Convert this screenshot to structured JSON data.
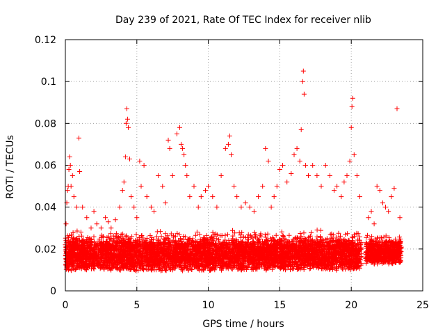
{
  "chart_data": {
    "type": "scatter",
    "title": "Day 239 of 2021, Rate Of TEC Index for receiver nlib",
    "xlabel": "GPS time / hours",
    "ylabel": "ROTI / TECUs",
    "xlim": [
      0,
      25
    ],
    "ylim": [
      0,
      0.12
    ],
    "xticks": [
      0,
      5,
      10,
      15,
      20,
      25
    ],
    "xtick_labels": [
      "0",
      "5",
      "10",
      "15",
      "20",
      "25"
    ],
    "yticks": [
      0,
      0.02,
      0.04,
      0.06,
      0.08,
      0.1,
      0.12
    ],
    "ytick_labels": [
      "0",
      "0.02",
      "0.04",
      "0.06",
      "0.08",
      "0.1",
      "0.12"
    ],
    "grid": true,
    "marker": "plus",
    "color": "#ff0000",
    "series": [
      {
        "x": [
          0.05,
          0.1,
          0.15,
          0.2,
          0.25,
          0.3,
          0.35,
          0.4,
          0.5,
          0.6,
          0.8,
          0.95,
          1.0,
          1.2,
          1.5,
          1.8,
          2.0,
          2.2,
          2.5,
          2.8,
          3.0,
          3.2,
          3.5,
          3.8,
          4.0,
          4.1,
          4.2,
          4.25,
          4.3,
          4.35,
          4.4,
          4.5,
          4.6,
          4.8,
          5.0,
          5.2,
          5.3,
          5.5,
          5.7,
          6.0,
          6.2,
          6.5,
          6.8,
          7.0,
          7.2,
          7.3,
          7.5,
          7.8,
          8.0,
          8.1,
          8.2,
          8.3,
          8.4,
          8.5,
          8.7,
          9.0,
          9.3,
          9.5,
          9.8,
          10.0,
          10.3,
          10.6,
          10.9,
          11.2,
          11.4,
          11.5,
          11.6,
          11.8,
          12.0,
          12.3,
          12.6,
          12.9,
          13.2,
          13.5,
          13.8,
          14.0,
          14.2,
          14.4,
          14.6,
          14.8,
          15.0,
          15.2,
          15.5,
          15.8,
          16.0,
          16.2,
          16.4,
          16.5,
          16.6,
          16.65,
          16.7,
          16.8,
          17.0,
          17.3,
          17.6,
          17.9,
          18.2,
          18.5,
          18.8,
          19.0,
          19.3,
          19.5,
          19.7,
          19.9,
          20.0,
          20.05,
          20.1,
          20.2,
          20.4,
          20.6,
          21.2,
          21.4,
          21.6,
          21.8,
          22.0,
          22.2,
          22.4,
          22.6,
          22.8,
          23.0,
          23.2,
          23.4
        ],
        "y": [
          0.032,
          0.042,
          0.048,
          0.05,
          0.058,
          0.064,
          0.06,
          0.05,
          0.055,
          0.045,
          0.04,
          0.073,
          0.057,
          0.04,
          0.035,
          0.03,
          0.038,
          0.032,
          0.03,
          0.035,
          0.033,
          0.03,
          0.034,
          0.04,
          0.048,
          0.052,
          0.064,
          0.08,
          0.087,
          0.082,
          0.078,
          0.063,
          0.045,
          0.04,
          0.035,
          0.062,
          0.05,
          0.06,
          0.045,
          0.04,
          0.038,
          0.055,
          0.05,
          0.042,
          0.072,
          0.068,
          0.055,
          0.075,
          0.078,
          0.07,
          0.068,
          0.065,
          0.06,
          0.055,
          0.045,
          0.05,
          0.04,
          0.045,
          0.048,
          0.05,
          0.045,
          0.04,
          0.055,
          0.068,
          0.07,
          0.074,
          0.065,
          0.05,
          0.045,
          0.04,
          0.042,
          0.04,
          0.038,
          0.045,
          0.05,
          0.068,
          0.062,
          0.04,
          0.045,
          0.05,
          0.058,
          0.06,
          0.052,
          0.056,
          0.065,
          0.068,
          0.062,
          0.077,
          0.1,
          0.105,
          0.094,
          0.06,
          0.055,
          0.06,
          0.055,
          0.05,
          0.06,
          0.055,
          0.048,
          0.05,
          0.045,
          0.052,
          0.055,
          0.062,
          0.078,
          0.088,
          0.092,
          0.065,
          0.055,
          0.045,
          0.035,
          0.038,
          0.032,
          0.05,
          0.048,
          0.042,
          0.04,
          0.038,
          0.045,
          0.049,
          0.087,
          0.035
        ]
      }
    ],
    "dense_band": {
      "segments": [
        {
          "x_start": 0.0,
          "x_end": 20.7,
          "y_low": 0.006,
          "y_high": 0.03
        },
        {
          "x_start": 21.0,
          "x_end": 23.5,
          "y_low": 0.01,
          "y_high": 0.028
        }
      ]
    }
  }
}
